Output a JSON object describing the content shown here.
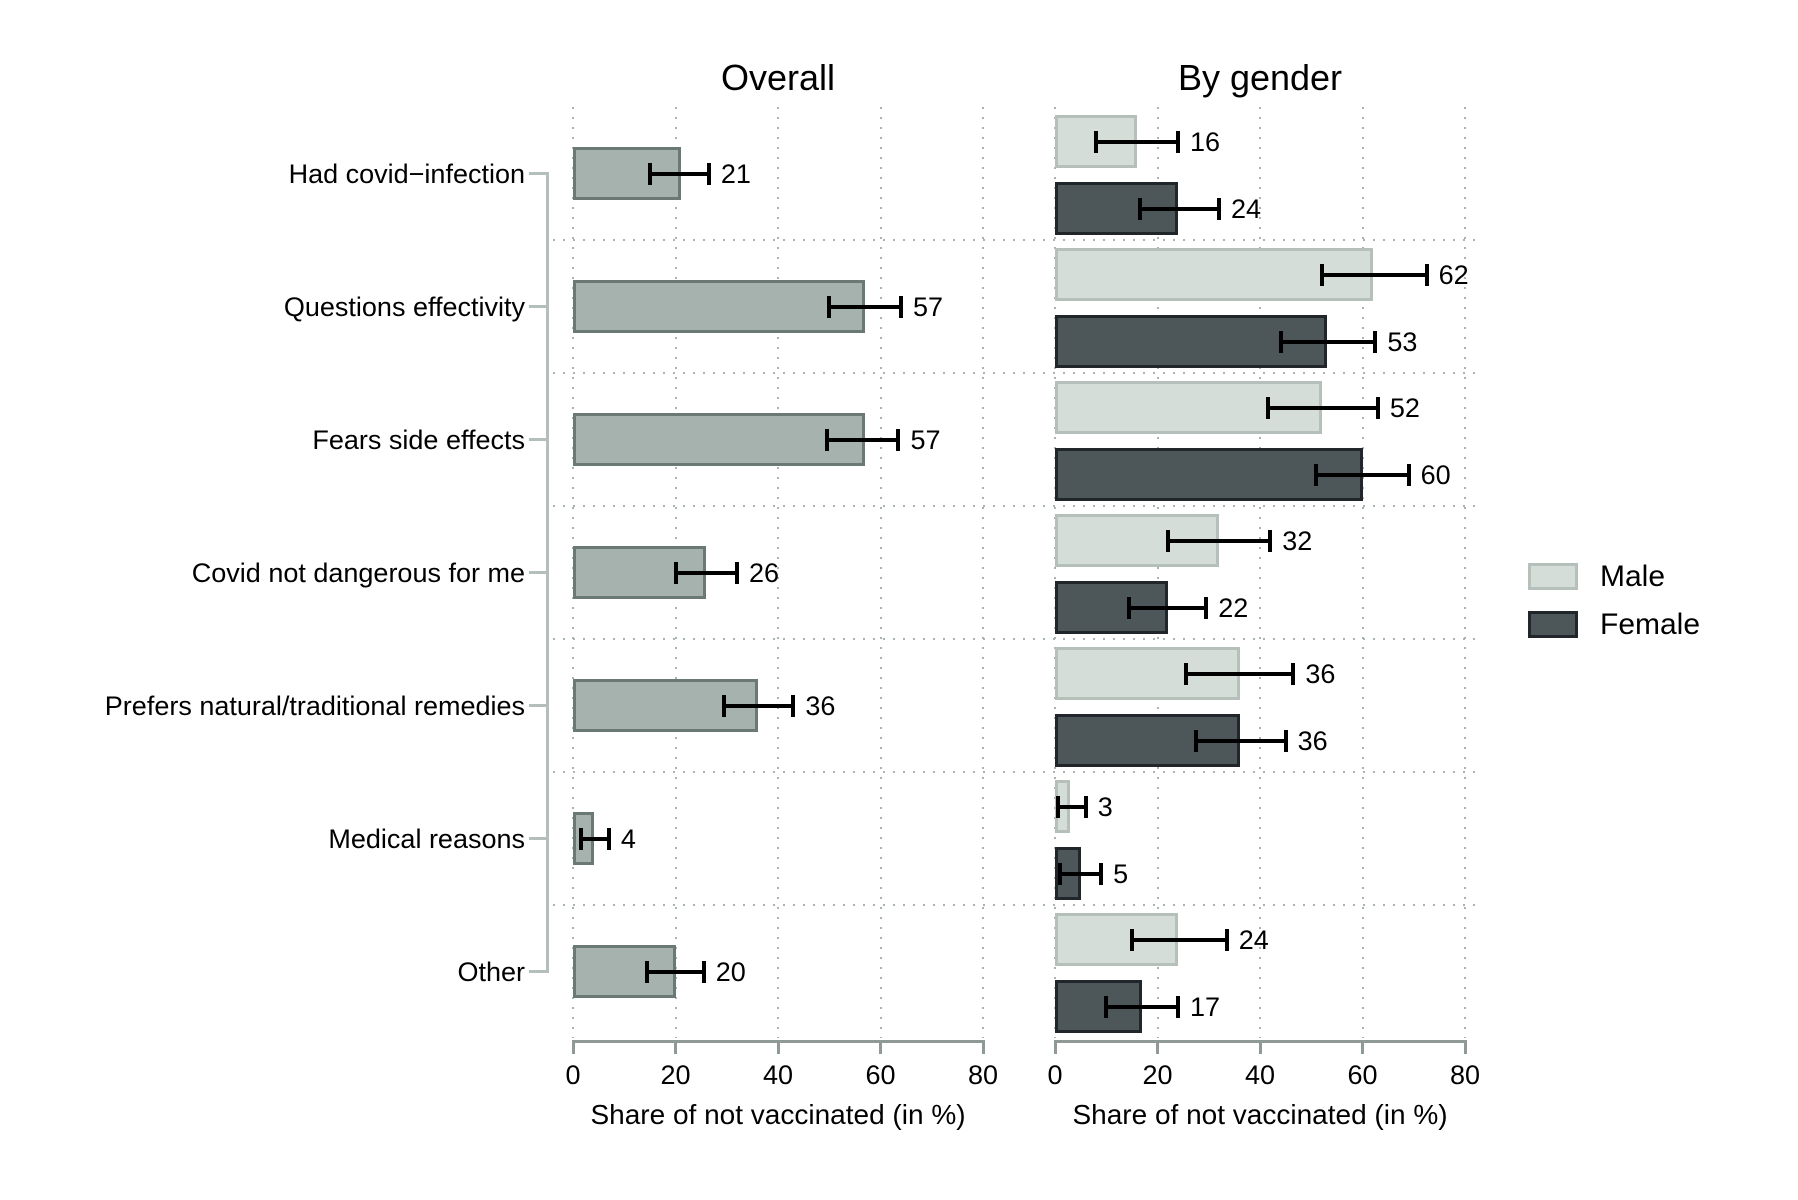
{
  "chart_data": [
    {
      "type": "bar",
      "panel": "overall",
      "title": "Overall",
      "xlabel": "Share of not vaccinated (in %)",
      "xlim": [
        0,
        80
      ],
      "xticks": [
        0,
        20,
        40,
        60,
        80
      ],
      "grid": "dotted",
      "categories": [
        "Had covid−infection",
        "Questions effectivity",
        "Fears side effects",
        "Covid not dangerous for me",
        "Prefers natural/traditional remedies",
        "Medical reasons",
        "Other"
      ],
      "series": [
        {
          "name": "Overall",
          "fill": "#a5b2ae",
          "stroke": "#6b7975",
          "values": [
            21,
            57,
            57,
            26,
            36,
            4,
            20
          ],
          "ci_low": [
            15,
            50,
            49.5,
            20,
            29.5,
            1.5,
            14.5
          ],
          "ci_high": [
            26.5,
            64,
            63.5,
            32,
            43,
            7,
            25.5
          ]
        }
      ]
    },
    {
      "type": "bar",
      "panel": "by-gender",
      "title": "By gender",
      "xlabel": "Share of not vaccinated (in %)",
      "xlim": [
        0,
        80
      ],
      "xticks": [
        0,
        20,
        40,
        60,
        80
      ],
      "grid": "dotted",
      "categories": [
        "Had covid−infection",
        "Questions effectivity",
        "Fears side effects",
        "Covid not dangerous for me",
        "Prefers natural/traditional remedies",
        "Medical reasons",
        "Other"
      ],
      "series": [
        {
          "name": "Male",
          "fill": "#d5ddd9",
          "stroke": "#b5c0bb",
          "values": [
            16,
            62,
            52,
            32,
            36,
            3,
            24
          ],
          "ci_low": [
            8,
            52,
            41.5,
            22,
            25.5,
            0.5,
            15
          ],
          "ci_high": [
            24,
            72.5,
            63,
            42,
            46.5,
            6,
            33.5
          ]
        },
        {
          "name": "Female",
          "fill": "#4d575a",
          "stroke": "#20262a",
          "values": [
            24,
            53,
            60,
            22,
            36,
            5,
            17
          ],
          "ci_low": [
            16.5,
            44,
            51,
            14.5,
            27.5,
            1,
            10
          ],
          "ci_high": [
            32,
            62.5,
            69,
            29.5,
            45,
            9,
            24
          ]
        }
      ]
    }
  ],
  "legend": {
    "position": "right",
    "items": [
      {
        "label": "Male",
        "fill": "#d5ddd9",
        "stroke": "#b5c0bb"
      },
      {
        "label": "Female",
        "fill": "#4d575a",
        "stroke": "#20262a"
      }
    ]
  },
  "colors": {
    "background": "#ffffff",
    "grid_dots": "#a9b4b0",
    "axis_line": "#8f9995",
    "bracket_line": "#b4beba",
    "error_bar": "#000000",
    "text": "#000000"
  }
}
